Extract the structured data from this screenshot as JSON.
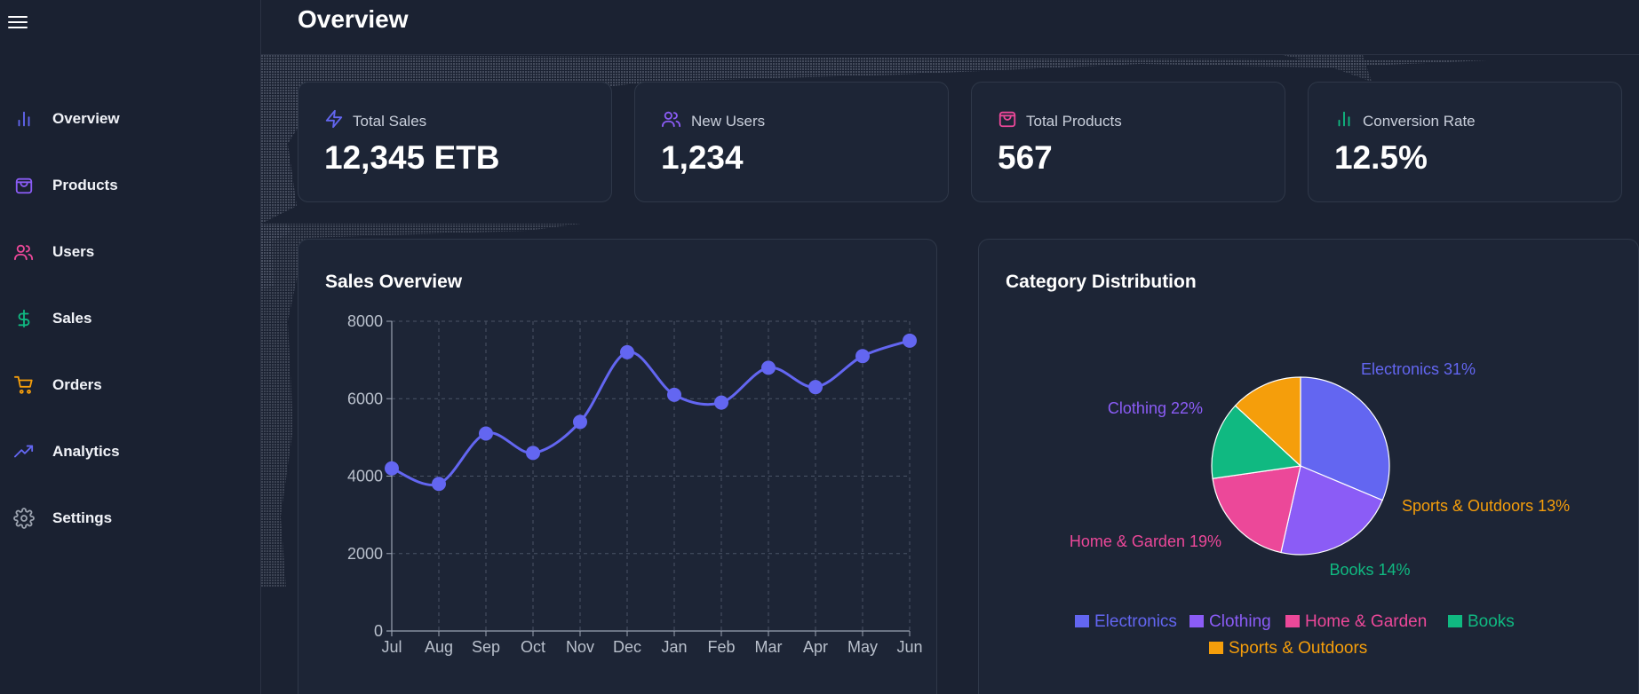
{
  "sidebar": {
    "items": [
      {
        "label": "Overview",
        "icon": "bar-chart-icon",
        "color": "#6366f1"
      },
      {
        "label": "Products",
        "icon": "shopping-bag-icon",
        "color": "#8b5cf6"
      },
      {
        "label": "Users",
        "icon": "users-icon",
        "color": "#ec4899"
      },
      {
        "label": "Sales",
        "icon": "dollar-icon",
        "color": "#10b981"
      },
      {
        "label": "Orders",
        "icon": "cart-icon",
        "color": "#f59e0b"
      },
      {
        "label": "Analytics",
        "icon": "trending-up-icon",
        "color": "#6366f1"
      },
      {
        "label": "Settings",
        "icon": "gear-icon",
        "color": "#9ca3af"
      }
    ]
  },
  "header": {
    "title": "Overview"
  },
  "stats": [
    {
      "label": "Total Sales",
      "value": "12,345 ETB",
      "icon": "zap-icon",
      "color": "#6366f1"
    },
    {
      "label": "New Users",
      "value": "1,234",
      "icon": "users-icon",
      "color": "#8b5cf6"
    },
    {
      "label": "Total Products",
      "value": "567",
      "icon": "shopping-bag-icon",
      "color": "#ec4899"
    },
    {
      "label": "Conversion Rate",
      "value": "12.5%",
      "icon": "bar-chart-icon",
      "color": "#10b981"
    }
  ],
  "sales_panel": {
    "title": "Sales Overview"
  },
  "category_panel": {
    "title": "Category Distribution"
  },
  "chart_data": [
    {
      "type": "line",
      "title": "Sales Overview",
      "categories": [
        "Jul",
        "Aug",
        "Sep",
        "Oct",
        "Nov",
        "Dec",
        "Jan",
        "Feb",
        "Mar",
        "Apr",
        "May",
        "Jun"
      ],
      "series": [
        {
          "values": [
            4200,
            3800,
            5100,
            4600,
            5400,
            7200,
            6100,
            5900,
            6800,
            6300,
            7100,
            7500
          ],
          "color": "#6366f1"
        }
      ],
      "yticks": [
        0,
        2000,
        4000,
        6000,
        8000
      ],
      "ylim": [
        0,
        8000
      ],
      "grid": true
    },
    {
      "type": "pie",
      "title": "Category Distribution",
      "slices": [
        {
          "name": "Electronics",
          "value": 31,
          "label": "Electronics 31%",
          "color": "#6366f1"
        },
        {
          "name": "Clothing",
          "value": 22,
          "label": "Clothing 22%",
          "color": "#8b5cf6"
        },
        {
          "name": "Home & Garden",
          "value": 19,
          "label": "Home & Garden 19%",
          "color": "#ec4899"
        },
        {
          "name": "Books",
          "value": 14,
          "label": "Books 14%",
          "color": "#10b981"
        },
        {
          "name": "Sports & Outdoors",
          "value": 13,
          "label": "Sports & Outdoors 13%",
          "color": "#f59e0b"
        }
      ],
      "legend_position": "bottom"
    }
  ]
}
